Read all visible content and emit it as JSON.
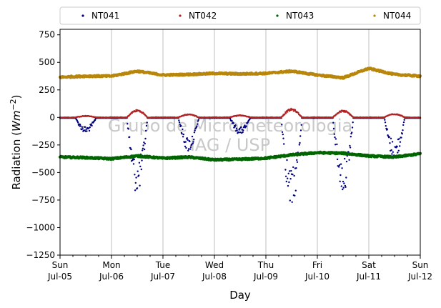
{
  "chart_data": {
    "type": "scatter",
    "xlabel": "Day",
    "ylabel": "Radiation (Wm⁻²)",
    "ylabel_base": "Radiation (",
    "ylabel_unit": "Wm",
    "ylabel_exp": "−2",
    "ylabel_close": ")",
    "ylim": [
      -1250,
      800
    ],
    "yticks": [
      750,
      500,
      250,
      0,
      -250,
      -500,
      -750,
      -1000,
      -1250
    ],
    "ytick_labels": [
      "750",
      "500",
      "250",
      "0",
      "−250",
      "−500",
      "−750",
      "−1000",
      "−1250"
    ],
    "xlim": [
      "2020-07-05",
      "2020-07-12"
    ],
    "xticks": [
      {
        "day": "Sun",
        "date": "Jul-05"
      },
      {
        "day": "Mon",
        "date": "Jul-06"
      },
      {
        "day": "Tue",
        "date": "Jul-07"
      },
      {
        "day": "Wed",
        "date": "Jul-08"
      },
      {
        "day": "Thu",
        "date": "Jul-09"
      },
      {
        "day": "Fri",
        "date": "Jul-10"
      },
      {
        "day": "Sat",
        "date": "Jul-11"
      },
      {
        "day": "Sun",
        "date": "Jul-12"
      }
    ],
    "grid": "vertical",
    "legend_position": "top",
    "watermark": [
      "Grupo de Micrometeorologia",
      "IAG / USP"
    ],
    "series": [
      {
        "name": "NT041",
        "color": "#00007f",
        "daily_min": [
          -140,
          -700,
          -310,
          -150,
          -830,
          -680,
          -380
        ],
        "baseline": -5
      },
      {
        "name": "NT042",
        "color": "#b22222",
        "daily_max": [
          15,
          70,
          30,
          20,
          80,
          65,
          35
        ],
        "baseline": 0
      },
      {
        "name": "NT043",
        "color": "#006400",
        "points": [
          [
            "2020-07-05T00:00",
            -360
          ],
          [
            "2020-07-05T12:00",
            -365
          ],
          [
            "2020-07-06T00:00",
            -375
          ],
          [
            "2020-07-06T12:00",
            -350
          ],
          [
            "2020-07-07T00:00",
            -370
          ],
          [
            "2020-07-07T12:00",
            -360
          ],
          [
            "2020-07-08T00:00",
            -385
          ],
          [
            "2020-07-08T12:00",
            -380
          ],
          [
            "2020-07-09T00:00",
            -370
          ],
          [
            "2020-07-09T12:00",
            -340
          ],
          [
            "2020-07-10T00:00",
            -320
          ],
          [
            "2020-07-10T12:00",
            -325
          ],
          [
            "2020-07-11T00:00",
            -350
          ],
          [
            "2020-07-11T12:00",
            -360
          ],
          [
            "2020-07-12T00:00",
            -330
          ]
        ]
      },
      {
        "name": "NT044",
        "color": "#b8860b",
        "points": [
          [
            "2020-07-05T00:00",
            365
          ],
          [
            "2020-07-05T12:00",
            375
          ],
          [
            "2020-07-06T00:00",
            375
          ],
          [
            "2020-07-06T12:00",
            420
          ],
          [
            "2020-07-07T00:00",
            385
          ],
          [
            "2020-07-07T12:00",
            390
          ],
          [
            "2020-07-08T00:00",
            400
          ],
          [
            "2020-07-08T12:00",
            395
          ],
          [
            "2020-07-09T00:00",
            400
          ],
          [
            "2020-07-09T12:00",
            420
          ],
          [
            "2020-07-10T00:00",
            385
          ],
          [
            "2020-07-10T12:00",
            360
          ],
          [
            "2020-07-11T00:00",
            445
          ],
          [
            "2020-07-11T12:00",
            390
          ],
          [
            "2020-07-12T00:00",
            375
          ]
        ]
      }
    ]
  }
}
